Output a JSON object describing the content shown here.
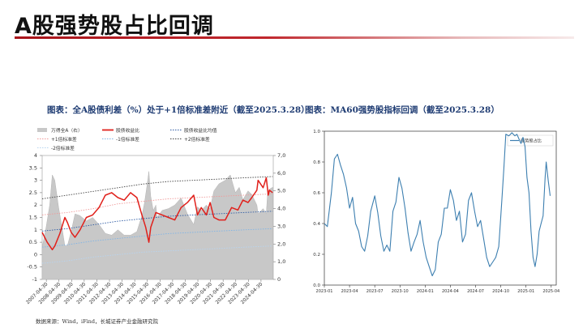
{
  "page": {
    "title": "A股强势股占比回调",
    "caption_left": "图表：全A股债利差（%）处于+1倍标准差附近（截至2025.3.28）",
    "caption_right": "图表：MA60强势股指标回调（截至2025.3.28）",
    "source": "数据来源：Wind，iFind，长城证券产业金融研究院"
  },
  "colors": {
    "accent_red": "#c0272d",
    "title_text": "#111111",
    "caption_blue": "#1f3c73",
    "area_gray": "#c8c8c8",
    "line_red": "#e0201b",
    "line_blue": "#2b74c4",
    "line_blue_right": "#3d7fb0"
  },
  "chart_data": [
    {
      "type": "line",
      "legend": [
        {
          "name": "万得全A（右）",
          "style": "area"
        },
        {
          "name": "股债收益比",
          "style": "solid-red"
        },
        {
          "name": "股债收益比均值",
          "style": "dotted-blue"
        },
        {
          "name": "+1倍标准差",
          "style": "dotted-lightred"
        },
        {
          "name": "-1倍标准差",
          "style": "dotted-lightblue"
        },
        {
          "name": "+2倍标准差",
          "style": "dotted-black"
        },
        {
          "name": "-2倍标准差",
          "style": "dotted-paleblue"
        }
      ],
      "x_ticks": [
        "2007-04-30",
        "2008-04-30",
        "2009-04-30",
        "2010-04-30",
        "2011-04-30",
        "2012-04-30",
        "2013-04-30",
        "2014-04-30",
        "2015-04-30",
        "2016-04-30",
        "2017-04-30",
        "2018-04-30",
        "2019-04-30",
        "2020-04-30",
        "2021-04-30",
        "2022-04-30",
        "2023-04-30",
        "2024-04-30"
      ],
      "y_left_ticks": [
        "4",
        "3.5",
        "3",
        "2.5",
        "2",
        "1.5",
        "1",
        "0.5",
        "0",
        "-0.5",
        "-1"
      ],
      "y_right_ticks": [
        "7,000",
        "6,000",
        "5,000",
        "4,000",
        "3,000",
        "2,000",
        "1,000",
        "0"
      ],
      "ylim_left": [
        -1,
        4
      ],
      "ylim_right": [
        0,
        7000
      ],
      "x_range": [
        2007.0,
        2025.3
      ],
      "series": [
        {
          "name": "万得全A（右）",
          "axis": "right",
          "x": [
            2007.0,
            2007.3,
            2007.6,
            2007.8,
            2008.0,
            2008.3,
            2008.6,
            2008.8,
            2009.0,
            2009.3,
            2009.6,
            2010.0,
            2010.5,
            2011.0,
            2011.5,
            2012.0,
            2012.5,
            2013.0,
            2013.5,
            2014.0,
            2014.5,
            2014.9,
            2015.1,
            2015.3,
            2015.45,
            2015.6,
            2015.8,
            2016.0,
            2016.1,
            2016.5,
            2017.0,
            2017.5,
            2018.0,
            2018.5,
            2019.0,
            2019.3,
            2019.6,
            2020.0,
            2020.3,
            2020.6,
            2021.0,
            2021.5,
            2021.9,
            2022.3,
            2022.6,
            2022.9,
            2023.3,
            2023.6,
            2024.0,
            2024.1,
            2024.5,
            2024.75,
            2024.85,
            2025.0,
            2025.25
          ],
          "values": [
            1800,
            2900,
            4200,
            5900,
            5600,
            4100,
            2800,
            1900,
            1900,
            2700,
            3700,
            3600,
            3300,
            3500,
            3100,
            2600,
            2500,
            2800,
            2500,
            2500,
            2700,
            3600,
            4300,
            5300,
            6100,
            4700,
            3900,
            4200,
            3500,
            3900,
            4000,
            4200,
            4600,
            3700,
            3100,
            4100,
            3900,
            4200,
            4000,
            5000,
            5400,
            5600,
            5900,
            4900,
            5200,
            4500,
            5000,
            4800,
            4200,
            3700,
            4000,
            3700,
            4900,
            5100,
            5200
          ]
        },
        {
          "name": "股债收益比",
          "axis": "left",
          "x": [
            2007.0,
            2007.4,
            2007.8,
            2008.0,
            2008.4,
            2008.8,
            2009.0,
            2009.3,
            2009.6,
            2010.0,
            2010.5,
            2011.0,
            2011.5,
            2012.0,
            2012.5,
            2013.0,
            2013.5,
            2014.0,
            2014.5,
            2014.9,
            2015.2,
            2015.45,
            2015.6,
            2016.0,
            2016.5,
            2017.0,
            2017.5,
            2018.0,
            2018.5,
            2019.0,
            2019.3,
            2019.6,
            2020.0,
            2020.3,
            2020.6,
            2021.0,
            2021.5,
            2022.0,
            2022.5,
            2022.9,
            2023.3,
            2023.6,
            2024.0,
            2024.1,
            2024.5,
            2024.75,
            2024.9,
            2025.0,
            2025.25
          ],
          "values": [
            0.9,
            0.5,
            0.2,
            0.35,
            0.85,
            1.5,
            1.3,
            0.9,
            0.7,
            1.0,
            1.5,
            1.6,
            1.9,
            2.4,
            2.5,
            2.3,
            2.2,
            2.5,
            2.3,
            1.6,
            1.1,
            0.5,
            1.1,
            1.7,
            1.6,
            1.5,
            1.4,
            1.9,
            2.1,
            2.4,
            1.6,
            1.9,
            1.6,
            2.1,
            1.5,
            1.4,
            1.4,
            1.9,
            1.8,
            2.2,
            2.1,
            2.3,
            2.6,
            3.0,
            2.7,
            3.1,
            2.4,
            2.6,
            2.5
          ]
        },
        {
          "name": "股债收益比均值",
          "axis": "left",
          "x": [
            2007.0,
            2009.0,
            2011.0,
            2013.0,
            2015.0,
            2017.0,
            2019.0,
            2021.0,
            2023.0,
            2025.25
          ],
          "values": [
            0.95,
            1.05,
            1.2,
            1.35,
            1.45,
            1.55,
            1.6,
            1.65,
            1.7,
            1.75
          ]
        },
        {
          "name": "+1倍标准差",
          "axis": "left",
          "x": [
            2007.0,
            2009.0,
            2011.0,
            2013.0,
            2015.0,
            2017.0,
            2019.0,
            2021.0,
            2023.0,
            2025.25
          ],
          "values": [
            1.6,
            1.7,
            1.85,
            2.05,
            2.15,
            2.25,
            2.3,
            2.35,
            2.4,
            2.45
          ]
        },
        {
          "name": "-1倍标准差",
          "axis": "left",
          "x": [
            2007.0,
            2009.0,
            2011.0,
            2013.0,
            2015.0,
            2017.0,
            2019.0,
            2021.0,
            2023.0,
            2025.25
          ],
          "values": [
            0.3,
            0.4,
            0.55,
            0.65,
            0.75,
            0.85,
            0.9,
            0.95,
            1.0,
            1.05
          ]
        },
        {
          "name": "+2倍标准差",
          "axis": "left",
          "x": [
            2007.0,
            2009.0,
            2011.0,
            2013.0,
            2015.0,
            2017.0,
            2019.0,
            2021.0,
            2023.0,
            2025.25
          ],
          "values": [
            2.25,
            2.4,
            2.55,
            2.7,
            2.85,
            2.95,
            3.0,
            3.05,
            3.1,
            3.15
          ]
        },
        {
          "name": "-2倍标准差",
          "axis": "left",
          "x": [
            2007.0,
            2009.0,
            2011.0,
            2013.0,
            2015.0,
            2017.0,
            2019.0,
            2021.0,
            2023.0,
            2025.25
          ],
          "values": [
            -0.35,
            -0.25,
            -0.1,
            0.0,
            0.1,
            0.15,
            0.2,
            0.25,
            0.3,
            0.35
          ]
        }
      ]
    },
    {
      "type": "line",
      "legend": [
        {
          "name": "强势股占比",
          "style": "solid-blue"
        }
      ],
      "x_ticks": [
        "2023-01",
        "2023-04",
        "2023-07",
        "2023-10",
        "2024-01",
        "2024-04",
        "2024-07",
        "2024-10",
        "2025-01",
        "2025-04"
      ],
      "y_ticks": [
        "1.0",
        "0.8",
        "0.6",
        "0.4",
        "0.2",
        "0.0"
      ],
      "ylim": [
        0,
        1.0
      ],
      "x_range": [
        2023.0,
        2025.3
      ],
      "series": [
        {
          "name": "强势股占比",
          "x": [
            2023.0,
            2023.03,
            2023.07,
            2023.1,
            2023.13,
            2023.16,
            2023.19,
            2023.22,
            2023.25,
            2023.28,
            2023.31,
            2023.34,
            2023.37,
            2023.4,
            2023.43,
            2023.46,
            2023.5,
            2023.53,
            2023.56,
            2023.59,
            2023.62,
            2023.65,
            2023.68,
            2023.71,
            2023.74,
            2023.77,
            2023.8,
            2023.83,
            2023.86,
            2023.89,
            2023.92,
            2023.95,
            2023.98,
            2024.01,
            2024.04,
            2024.07,
            2024.1,
            2024.13,
            2024.16,
            2024.19,
            2024.22,
            2024.25,
            2024.28,
            2024.31,
            2024.34,
            2024.37,
            2024.4,
            2024.43,
            2024.46,
            2024.49,
            2024.52,
            2024.55,
            2024.58,
            2024.61,
            2024.64,
            2024.67,
            2024.7,
            2024.73,
            2024.74,
            2024.76,
            2024.78,
            2024.8,
            2024.83,
            2024.86,
            2024.89,
            2024.91,
            2024.93,
            2024.95,
            2024.97,
            2024.99,
            2025.01,
            2025.03,
            2025.05,
            2025.07,
            2025.09,
            2025.11,
            2025.13,
            2025.15,
            2025.17,
            2025.19,
            2025.2,
            2025.22,
            2025.24
          ],
          "values": [
            0.4,
            0.38,
            0.6,
            0.82,
            0.85,
            0.78,
            0.72,
            0.63,
            0.5,
            0.57,
            0.4,
            0.35,
            0.25,
            0.22,
            0.32,
            0.48,
            0.58,
            0.47,
            0.32,
            0.22,
            0.26,
            0.22,
            0.48,
            0.54,
            0.7,
            0.63,
            0.5,
            0.34,
            0.22,
            0.28,
            0.33,
            0.42,
            0.28,
            0.18,
            0.12,
            0.06,
            0.1,
            0.28,
            0.33,
            0.5,
            0.5,
            0.62,
            0.55,
            0.42,
            0.48,
            0.28,
            0.33,
            0.55,
            0.6,
            0.48,
            0.38,
            0.42,
            0.3,
            0.18,
            0.12,
            0.15,
            0.18,
            0.25,
            0.35,
            0.55,
            0.75,
            0.98,
            0.97,
            0.99,
            0.97,
            0.98,
            0.95,
            0.92,
            0.96,
            0.9,
            0.7,
            0.6,
            0.35,
            0.18,
            0.12,
            0.2,
            0.35,
            0.4,
            0.45,
            0.7,
            0.8,
            0.68,
            0.58
          ]
        }
      ]
    }
  ]
}
